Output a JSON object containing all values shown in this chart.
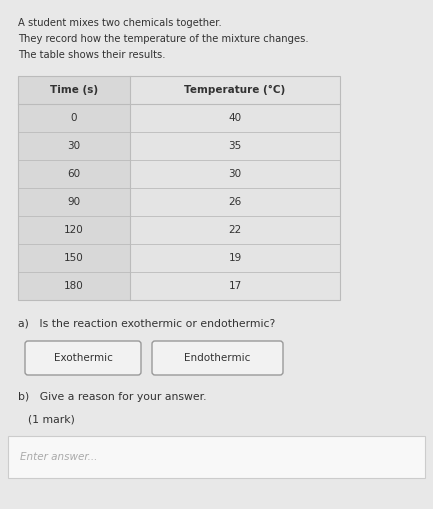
{
  "intro_lines": [
    "A student mixes two chemicals together.",
    "They record how the temperature of the mixture changes.",
    "The table shows their results."
  ],
  "table_headers": [
    "Time (s)",
    "Temperature (°C)"
  ],
  "table_data": [
    [
      "0",
      "40"
    ],
    [
      "30",
      "35"
    ],
    [
      "60",
      "30"
    ],
    [
      "90",
      "26"
    ],
    [
      "120",
      "22"
    ],
    [
      "150",
      "19"
    ],
    [
      "180",
      "17"
    ]
  ],
  "question_a": "a)   Is the reaction exothermic or endothermic?",
  "button_exothermic": "Exothermic",
  "button_endothermic": "Endothermic",
  "question_b": "b)   Give a reason for your answer.",
  "mark_text": "(1 mark)",
  "placeholder": "Enter answer...",
  "bg_color": "#e8e8e8",
  "table_left_bg": "#d8d8d8",
  "table_right_bg": "#e4e4e4",
  "table_header_color": "#cccccc",
  "table_line_color": "#bbbbbb",
  "text_color": "#333333",
  "subtext_color": "#555555",
  "button_border": "#999999",
  "button_bg": "#f2f2f2",
  "answer_box_bg": "#f8f8f8",
  "answer_box_border": "#cccccc",
  "placeholder_color": "#aaaaaa"
}
